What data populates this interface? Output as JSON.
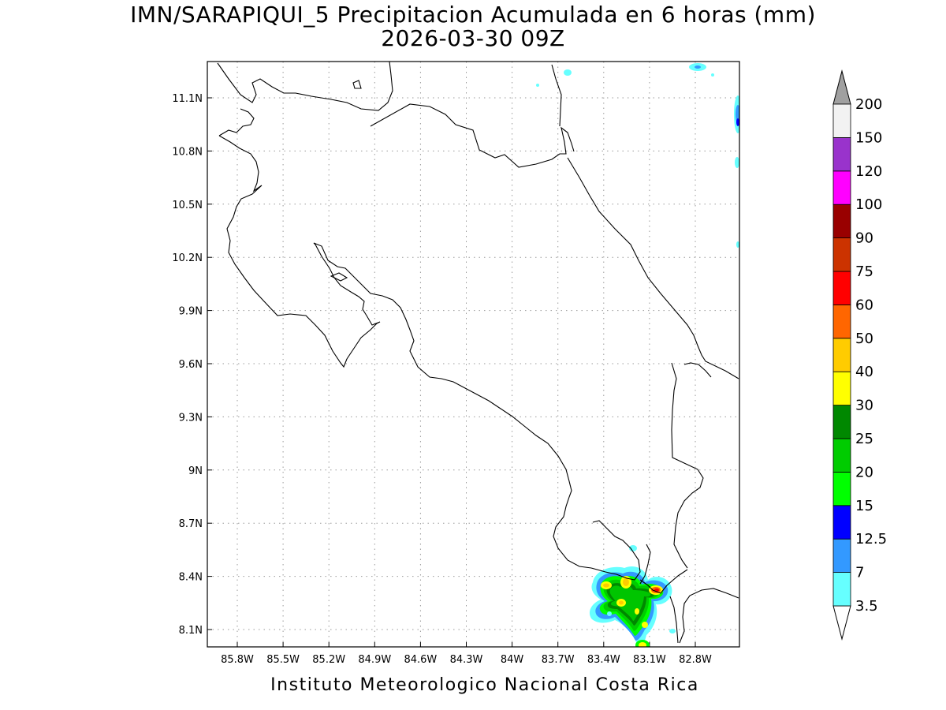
{
  "title": {
    "line1": "IMN/SARAPIQUI_5 Precipitacion Acumulada en 6 horas (mm)",
    "line2": "2026-03-30 09Z"
  },
  "credit": "Instituto Meteorologico Nacional Costa Rica",
  "map": {
    "lon_ticks": [
      {
        "value": -85.8,
        "label": "85.8W"
      },
      {
        "value": -85.5,
        "label": "85.5W"
      },
      {
        "value": -85.2,
        "label": "85.2W"
      },
      {
        "value": -84.9,
        "label": "84.9W"
      },
      {
        "value": -84.6,
        "label": "84.6W"
      },
      {
        "value": -84.3,
        "label": "84.3W"
      },
      {
        "value": -84.0,
        "label": "84W"
      },
      {
        "value": -83.7,
        "label": "83.7W"
      },
      {
        "value": -83.4,
        "label": "83.4W"
      },
      {
        "value": -83.1,
        "label": "83.1W"
      },
      {
        "value": -82.8,
        "label": "82.8W"
      }
    ],
    "lat_ticks": [
      {
        "value": 11.1,
        "label": "11.1N"
      },
      {
        "value": 10.8,
        "label": "10.8N"
      },
      {
        "value": 10.5,
        "label": "10.5N"
      },
      {
        "value": 10.2,
        "label": "10.2N"
      },
      {
        "value": 9.9,
        "label": "9.9N"
      },
      {
        "value": 9.6,
        "label": "9.6N"
      },
      {
        "value": 9.3,
        "label": "9.3N"
      },
      {
        "value": 9.0,
        "label": "9N"
      },
      {
        "value": 8.7,
        "label": "8.7N"
      },
      {
        "value": 8.4,
        "label": "8.4N"
      },
      {
        "value": 8.1,
        "label": "8.1N"
      }
    ],
    "coastline_color": "#000000",
    "grid_color": "#999999"
  },
  "colorbar": {
    "levels": [
      "3.5",
      "7",
      "12.5",
      "15",
      "20",
      "25",
      "30",
      "40",
      "50",
      "60",
      "75",
      "90",
      "100",
      "120",
      "150",
      "200"
    ],
    "colors": [
      "#66ffff",
      "#3399ff",
      "#0000ff",
      "#00ff00",
      "#00cc00",
      "#008800",
      "#ffff00",
      "#ffcc00",
      "#ff6600",
      "#ff0000",
      "#cc3300",
      "#990000",
      "#ff00ff",
      "#9933cc",
      "#f2f2f2"
    ],
    "max_color": "#a0a0a0",
    "min_color": "#ffffff"
  }
}
